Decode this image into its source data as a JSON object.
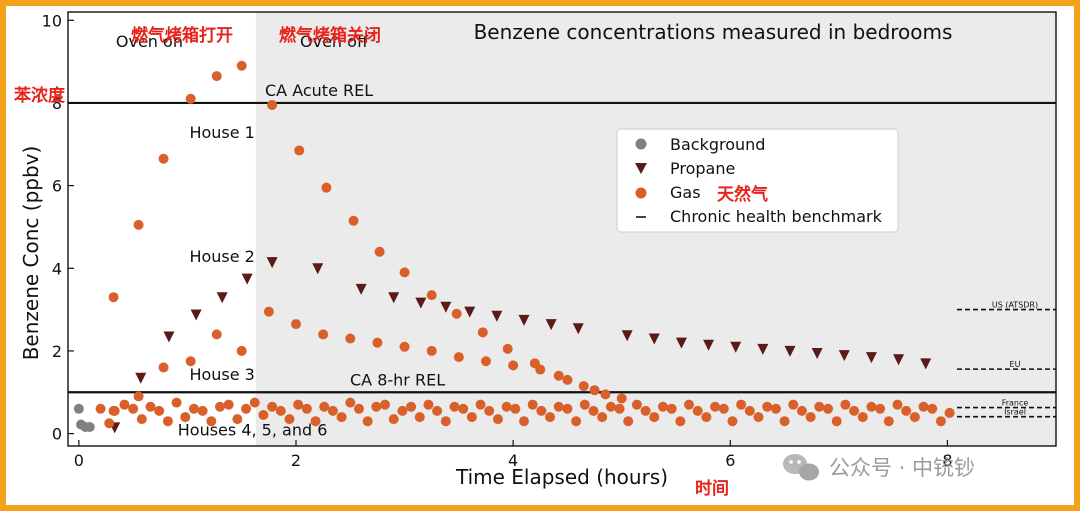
{
  "chart_data": {
    "type": "scatter",
    "title": "Benzene concentrations measured in bedrooms",
    "xlabel": "Time Elapsed (hours)",
    "ylabel": "Benzene Conc (ppbv)",
    "xlim": [
      -0.1,
      9.0
    ],
    "ylim": [
      -0.3,
      10.2
    ],
    "xticks": [
      0,
      2,
      4,
      6,
      8
    ],
    "yticks": [
      0,
      2,
      4,
      6,
      8,
      10
    ],
    "oven_off_time": 1.63,
    "legend_position": "upper-center-right",
    "series": [
      {
        "name": "Background",
        "marker": "circle",
        "color": "#808080",
        "x": [
          0.0,
          0.02,
          0.06,
          0.1
        ],
        "y": [
          0.6,
          0.22,
          0.16,
          0.16
        ]
      },
      {
        "name": "Propane",
        "marker": "triangle-down",
        "color": "#5a1a17",
        "x": [
          0.33,
          0.57,
          0.83,
          1.08,
          1.32,
          1.55,
          1.78,
          2.2,
          2.6,
          2.9,
          3.15,
          3.38,
          3.6,
          3.85,
          4.1,
          4.35,
          4.6,
          5.05,
          5.3,
          5.55,
          5.8,
          6.05,
          6.3,
          6.55,
          6.8,
          7.05,
          7.3,
          7.55,
          7.8
        ],
        "y": [
          0.15,
          1.35,
          2.35,
          2.88,
          3.3,
          3.75,
          4.15,
          4.0,
          3.5,
          3.3,
          3.17,
          3.07,
          2.95,
          2.85,
          2.75,
          2.65,
          2.55,
          2.38,
          2.3,
          2.2,
          2.15,
          2.1,
          2.05,
          2.0,
          1.95,
          1.9,
          1.85,
          1.8,
          1.7
        ]
      },
      {
        "name": "Gas",
        "marker": "circle",
        "color": "#d95f2b",
        "x": [
          0.32,
          0.55,
          0.78,
          1.03,
          1.27,
          1.5,
          1.78,
          2.03,
          2.28,
          2.53,
          2.77,
          3.0,
          0.32,
          0.55,
          0.78,
          1.03,
          1.27,
          1.5,
          1.75,
          2.0,
          2.25,
          2.5,
          2.75,
          3.0,
          3.25,
          3.5,
          3.75,
          4.0,
          4.25,
          4.5,
          4.75,
          5.0,
          3.25,
          3.48,
          3.72,
          3.95,
          4.2,
          4.42,
          4.65,
          4.85
        ],
        "y": [
          3.3,
          5.05,
          6.65,
          8.1,
          8.65,
          8.9,
          7.95,
          6.85,
          5.95,
          5.15,
          4.4,
          3.9,
          0.55,
          0.9,
          1.6,
          1.75,
          2.4,
          2.0,
          2.95,
          2.65,
          2.4,
          2.3,
          2.2,
          2.1,
          2.0,
          1.85,
          1.75,
          1.65,
          1.55,
          1.3,
          1.05,
          0.85,
          3.35,
          2.9,
          2.45,
          2.05,
          1.7,
          1.4,
          1.15,
          0.95
        ]
      },
      {
        "name": "Gas",
        "marker": "circle",
        "color": "#d95f2b",
        "role": "houses-4-6",
        "x": [
          0.2,
          0.28,
          0.33,
          0.42,
          0.5,
          0.58,
          0.66,
          0.74,
          0.82,
          0.9,
          0.98,
          1.06,
          1.14,
          1.22,
          1.3,
          1.38,
          1.46,
          1.54,
          1.62,
          1.7,
          1.78,
          1.86,
          1.94,
          2.02,
          2.1,
          2.18,
          2.26,
          2.34,
          2.42,
          2.5,
          2.58,
          2.66,
          2.74,
          2.82,
          2.9,
          2.98,
          3.06,
          3.14,
          3.22,
          3.3,
          3.38,
          3.46,
          3.54,
          3.62,
          3.7,
          3.78,
          3.86,
          3.94,
          4.02,
          4.1,
          4.18,
          4.26,
          4.34,
          4.42,
          4.5,
          4.58,
          4.66,
          4.74,
          4.82,
          4.9,
          4.98,
          5.06,
          5.14,
          5.22,
          5.3,
          5.38,
          5.46,
          5.54,
          5.62,
          5.7,
          5.78,
          5.86,
          5.94,
          6.02,
          6.1,
          6.18,
          6.26,
          6.34,
          6.42,
          6.5,
          6.58,
          6.66,
          6.74,
          6.82,
          6.9,
          6.98,
          7.06,
          7.14,
          7.22,
          7.3,
          7.38,
          7.46,
          7.54,
          7.62,
          7.7,
          7.78,
          7.86,
          7.94,
          8.02
        ],
        "y": [
          0.6,
          0.25,
          0.55,
          0.7,
          0.6,
          0.35,
          0.65,
          0.55,
          0.3,
          0.75,
          0.4,
          0.6,
          0.55,
          0.3,
          0.65,
          0.7,
          0.35,
          0.6,
          0.75,
          0.45,
          0.65,
          0.55,
          0.35,
          0.7,
          0.6,
          0.3,
          0.65,
          0.55,
          0.4,
          0.75,
          0.6,
          0.3,
          0.65,
          0.7,
          0.35,
          0.55,
          0.65,
          0.4,
          0.7,
          0.55,
          0.3,
          0.65,
          0.6,
          0.4,
          0.7,
          0.55,
          0.35,
          0.65,
          0.6,
          0.3,
          0.7,
          0.55,
          0.4,
          0.65,
          0.6,
          0.3,
          0.7,
          0.55,
          0.4,
          0.65,
          0.6,
          0.3,
          0.7,
          0.55,
          0.4,
          0.65,
          0.6,
          0.3,
          0.7,
          0.55,
          0.4,
          0.65,
          0.6,
          0.3,
          0.7,
          0.55,
          0.4,
          0.65,
          0.6,
          0.3,
          0.7,
          0.55,
          0.4,
          0.65,
          0.6,
          0.3,
          0.7,
          0.55,
          0.4,
          0.65,
          0.6,
          0.3,
          0.7,
          0.55,
          0.4,
          0.65,
          0.6,
          0.3,
          0.5
        ]
      }
    ],
    "reference_lines": [
      {
        "label": "CA Acute REL",
        "y": 8.0
      },
      {
        "label": "CA 8-hr REL",
        "y": 1.0
      }
    ],
    "chronic_benchmarks": [
      {
        "label": "US (ATSDR)",
        "y": 3.0
      },
      {
        "label": "EU",
        "y": 1.56
      },
      {
        "label": "France",
        "y": 0.63
      },
      {
        "label": "Israel",
        "y": 0.41
      }
    ],
    "annotations": [
      {
        "text": "Oven on",
        "x": 0.65,
        "y": 9.35
      },
      {
        "text": "Oven off",
        "x": 2.35,
        "y": 9.35
      },
      {
        "text": "House 1",
        "x": 1.32,
        "y": 7.15
      },
      {
        "text": "House 2",
        "x": 1.32,
        "y": 4.15
      },
      {
        "text": "House 3",
        "x": 1.32,
        "y": 1.3
      },
      {
        "text": "Houses 4, 5, and 6",
        "x": 1.6,
        "y": -0.05
      }
    ],
    "legend_entries": [
      {
        "label": "Background",
        "marker": "circle",
        "color": "#808080"
      },
      {
        "label": "Propane",
        "marker": "triangle-down",
        "color": "#5a1a17"
      },
      {
        "label": "Gas",
        "marker": "circle",
        "color": "#d95f2b"
      },
      {
        "label": "Chronic health benchmark",
        "marker": "dash",
        "color": "#444444"
      }
    ]
  },
  "overlay_labels": {
    "oven_on_cn": "燃气烤箱打开",
    "oven_off_cn": "燃气烤箱关闭",
    "ylabel_cn": "苯浓度",
    "gas_cn": "天然气",
    "xlabel_cn": "时间"
  },
  "watermark": "公众号 · 中铳钞"
}
